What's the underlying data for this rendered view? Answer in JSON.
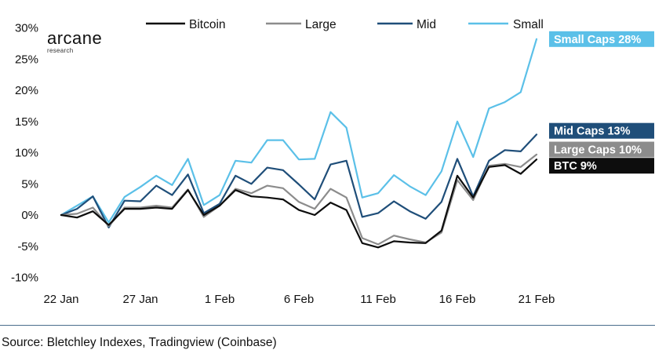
{
  "logo": {
    "name": "arcane",
    "sub": "research"
  },
  "source": "Source: Bletchley Indexes, Tradingview (Coinbase)",
  "colors": {
    "Bitcoin": "#0d0d0d",
    "Large": "#8c8c8c",
    "Mid": "#1f4e79",
    "Small": "#5bc0e8"
  },
  "chart_data": {
    "type": "line",
    "xlabel": "",
    "ylabel": "",
    "ylim": [
      -10,
      30
    ],
    "y_ticks": [
      -10,
      -5,
      0,
      5,
      10,
      15,
      20,
      25,
      30
    ],
    "y_tick_labels": [
      "-10%",
      "-5%",
      "0%",
      "5%",
      "10%",
      "15%",
      "20%",
      "25%",
      "30%"
    ],
    "x": [
      "2022-01-22",
      "2022-01-23",
      "2022-01-24",
      "2022-01-25",
      "2022-01-26",
      "2022-01-27",
      "2022-01-28",
      "2022-01-29",
      "2022-01-30",
      "2022-01-31",
      "2022-02-01",
      "2022-02-02",
      "2022-02-03",
      "2022-02-04",
      "2022-02-05",
      "2022-02-06",
      "2022-02-07",
      "2022-02-08",
      "2022-02-09",
      "2022-02-10",
      "2022-02-11",
      "2022-02-12",
      "2022-02-13",
      "2022-02-14",
      "2022-02-15",
      "2022-02-16",
      "2022-02-17",
      "2022-02-18",
      "2022-02-19",
      "2022-02-20",
      "2022-02-21"
    ],
    "x_ticks": [
      "2022-01-22",
      "2022-01-27",
      "2022-02-01",
      "2022-02-06",
      "2022-02-11",
      "2022-02-16",
      "2022-02-21"
    ],
    "x_tick_labels": [
      "22 Jan",
      "27 Jan",
      "1 Feb",
      "6 Feb",
      "11 Feb",
      "16 Feb",
      "21 Feb"
    ],
    "legend": {
      "placement": "top",
      "entries": [
        "Bitcoin",
        "Large",
        "Mid",
        "Small"
      ]
    },
    "series": [
      {
        "name": "Bitcoin",
        "values": [
          0,
          -0.4,
          0.6,
          -1.6,
          1.0,
          1.0,
          1.2,
          1.0,
          4.0,
          0.0,
          1.5,
          4.0,
          3.0,
          2.8,
          2.5,
          0.8,
          0,
          2.0,
          0.8,
          -4.5,
          -5.2,
          -4.2,
          -4.4,
          -4.5,
          -2.5,
          6.3,
          2.8,
          7.7,
          8.0,
          6.6,
          8.9
        ]
      },
      {
        "name": "Large",
        "values": [
          0,
          0.2,
          1.2,
          -1.8,
          1.2,
          1.2,
          1.5,
          1.2,
          4.1,
          -0.3,
          1.5,
          4.2,
          3.5,
          4.7,
          4.3,
          2.1,
          1.0,
          4.2,
          2.8,
          -3.7,
          -4.7,
          -3.3,
          -3.9,
          -4.4,
          -2.8,
          5.6,
          2.4,
          7.9,
          8.2,
          7.7,
          9.7
        ]
      },
      {
        "name": "Mid",
        "values": [
          0,
          1.0,
          3.0,
          -2.0,
          2.3,
          2.2,
          4.7,
          3.2,
          6.5,
          0.3,
          1.8,
          6.3,
          5.0,
          7.6,
          7.2,
          4.9,
          2.5,
          8.1,
          8.7,
          -0.3,
          0.3,
          2.2,
          0.6,
          -0.6,
          2.1,
          9.0,
          3.0,
          8.7,
          10.4,
          10.2,
          12.9
        ]
      },
      {
        "name": "Small",
        "values": [
          0,
          1.5,
          3.0,
          -1.2,
          2.9,
          4.5,
          6.3,
          4.8,
          9.0,
          1.6,
          3.2,
          8.7,
          8.4,
          12.0,
          12.0,
          8.9,
          9.0,
          16.5,
          14.0,
          2.8,
          3.5,
          6.4,
          4.6,
          3.2,
          7.0,
          15.0,
          9.3,
          17.1,
          18.1,
          19.7,
          28.2
        ]
      }
    ],
    "end_labels": [
      {
        "series": "Small",
        "text": "Small Caps 28%",
        "bg": "#5bc0e8",
        "value": 28.2
      },
      {
        "series": "Mid",
        "text": "Mid Caps 13%",
        "bg": "#1f4e79",
        "value": 13.5
      },
      {
        "series": "Large",
        "text": "Large Caps 10%",
        "bg": "#8c8c8c",
        "value": 10.5
      },
      {
        "series": "Bitcoin",
        "text": "BTC 9%",
        "bg": "#0d0d0d",
        "value": 7.9
      }
    ]
  }
}
